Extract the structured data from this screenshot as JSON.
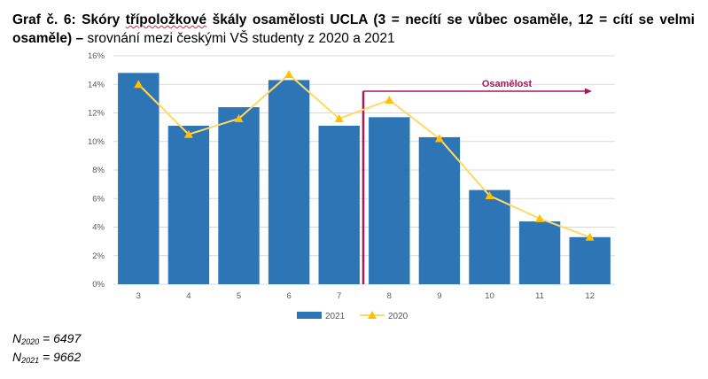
{
  "title": {
    "prefix_bold": "Graf č. 6: Skóry ",
    "wavy_bold": "třípoložkové",
    "rest_bold": " škály osamělosti UCLA (3 = necítí se vůbec osaměle, 12 = cítí se velmi osaměle) – ",
    "normal": "srovnání mezi českými VŠ studenty z 2020 a 2021"
  },
  "chart_data": {
    "type": "bar",
    "categories": [
      "3",
      "4",
      "5",
      "6",
      "7",
      "8",
      "9",
      "10",
      "11",
      "12"
    ],
    "series": [
      {
        "name": "2021",
        "type": "bar",
        "color": "#2e75b6",
        "values": [
          14.8,
          11.1,
          12.4,
          14.3,
          11.1,
          11.7,
          10.3,
          6.6,
          4.4,
          3.3
        ]
      },
      {
        "name": "2020",
        "type": "line",
        "color": "#ffd966",
        "marker_color": "#ffc000",
        "values": [
          14.0,
          10.5,
          11.6,
          14.7,
          11.6,
          12.9,
          10.2,
          6.2,
          4.6,
          3.3
        ]
      }
    ],
    "ylim": [
      0,
      16
    ],
    "yticks": [
      "0%",
      "2%",
      "4%",
      "6%",
      "8%",
      "10%",
      "12%",
      "14%",
      "16%"
    ],
    "grid": true,
    "legend": "bottom",
    "annotation": {
      "text": "Osamělost",
      "from_category": "8",
      "color": "#a6195a"
    }
  },
  "notes": {
    "n2020_label": "N",
    "n2020_sub": "2020",
    "n2020_value": " = 6497",
    "n2021_label": "N",
    "n2021_sub": "2021",
    "n2021_value": " = 9662"
  }
}
